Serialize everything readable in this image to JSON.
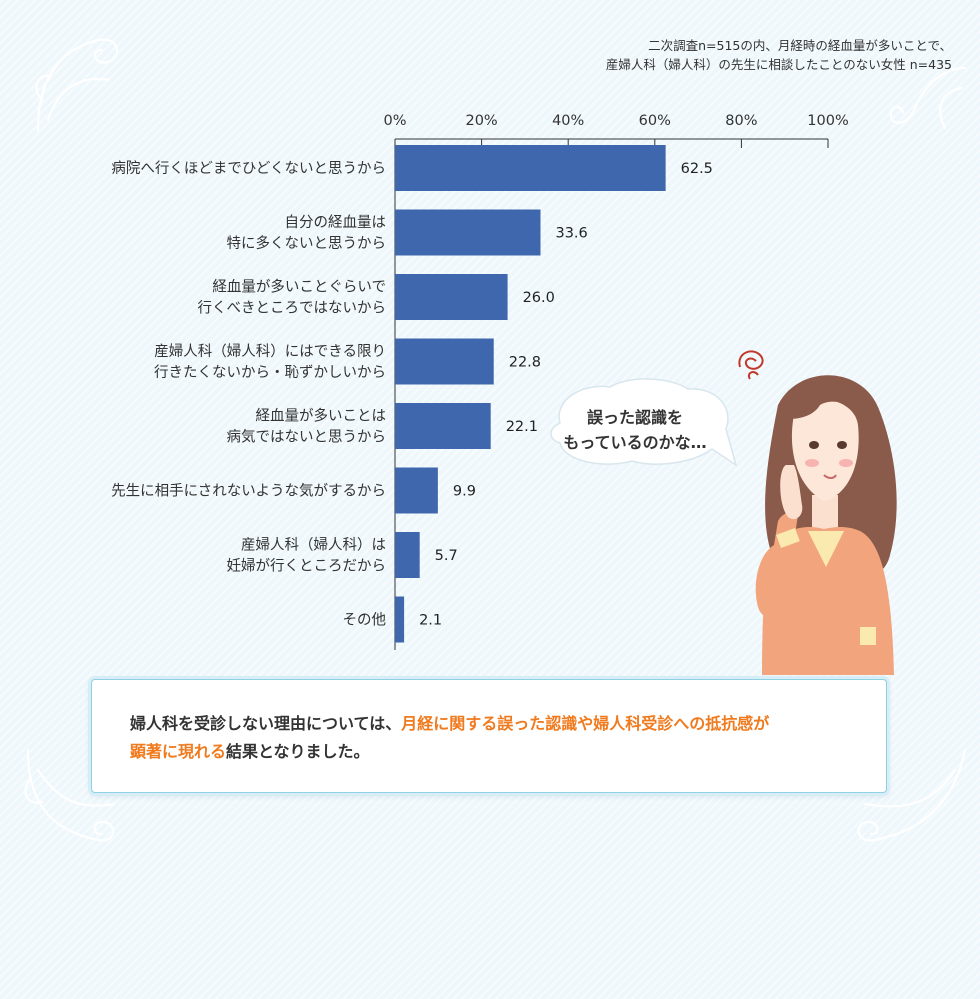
{
  "note": {
    "line1": "二次調査n=515の内、月経時の経血量が多いことで、",
    "line2": "産婦人科（婦人科）の先生に相談したことのない女性 n=435"
  },
  "chart_data": {
    "type": "bar",
    "orientation": "horizontal",
    "categories": [
      [
        "病院へ行くほどまでひどくないと思うから"
      ],
      [
        "自分の経血量は",
        "特に多くないと思うから"
      ],
      [
        "経血量が多いことぐらいで",
        "行くべきところではないから"
      ],
      [
        "産婦人科（婦人科）にはできる限り",
        "行きたくないから・恥ずかしいから"
      ],
      [
        "経血量が多いことは",
        "病気ではないと思うから"
      ],
      [
        "先生に相手にされないような気がするから"
      ],
      [
        "産婦人科（婦人科）は",
        "妊婦が行くところだから"
      ],
      [
        "その他"
      ]
    ],
    "values": [
      62.5,
      33.6,
      26.0,
      22.8,
      22.1,
      9.9,
      5.7,
      2.1
    ],
    "value_labels": [
      "62.5",
      "33.6",
      "26.0",
      "22.8",
      "22.1",
      "9.9",
      "5.7",
      "2.1"
    ],
    "xlim": [
      0,
      100
    ],
    "ticks": [
      "0%",
      "20%",
      "40%",
      "60%",
      "80%",
      "100%"
    ],
    "tick_values": [
      0,
      20,
      40,
      60,
      80,
      100
    ],
    "axis_position": "top",
    "grid": false,
    "bar_color": "#3f67ad"
  },
  "bubble": {
    "line1": "誤った認識を",
    "line2": "もっているのかな…"
  },
  "summary": {
    "part1": "婦人科を受診しない理由については、",
    "highlight1": "月経に関する誤った認識や婦人科受診への抵抗感が",
    "highlight2": "顕著に現れる",
    "part2": "結果となりました。"
  },
  "colors": {
    "highlight": "#f07a1e",
    "bar": "#3f67ad",
    "background": "#eef7fb"
  }
}
